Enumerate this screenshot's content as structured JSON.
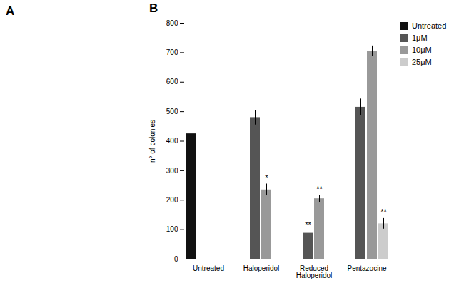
{
  "chart_data": {
    "type": "bar",
    "categories": [
      "Untreated",
      "Haloperidol",
      "Reduced\nHaloperidol",
      "Pentazocine"
    ],
    "ylabel": "n° of colonies",
    "series": [
      {
        "name": "Untreated",
        "color": "#111111",
        "values": [
          425,
          null,
          null,
          null
        ],
        "errors": [
          15,
          null,
          null,
          null
        ]
      },
      {
        "name": "1μM",
        "color": "#555555",
        "values": [
          null,
          480,
          88,
          515
        ],
        "errors": [
          null,
          25,
          8,
          28
        ]
      },
      {
        "name": "10μM",
        "color": "#999999",
        "values": [
          null,
          235,
          205,
          705
        ],
        "errors": [
          null,
          20,
          12,
          18
        ]
      },
      {
        "name": "25μM",
        "color": "#cccccc",
        "values": [
          null,
          null,
          null,
          120
        ],
        "errors": [
          null,
          null,
          null,
          18
        ]
      }
    ],
    "annotations": [
      {
        "text": "A"
      },
      {
        "text": "B"
      },
      {
        "text": "*",
        "category": "Haloperidol",
        "series": "10μM"
      },
      {
        "text": "**",
        "category": "Reduced\nHaloperidol",
        "series": "1μM"
      },
      {
        "text": "**",
        "category": "Reduced\nHaloperidol",
        "series": "10μM"
      },
      {
        "text": "**",
        "category": "Pentazocine",
        "series": "25μM"
      }
    ],
    "ylim": [
      0,
      800
    ],
    "yticks": [
      0,
      100,
      200,
      300,
      400,
      500,
      600,
      700,
      800
    ],
    "grid": false,
    "legend": "right"
  }
}
